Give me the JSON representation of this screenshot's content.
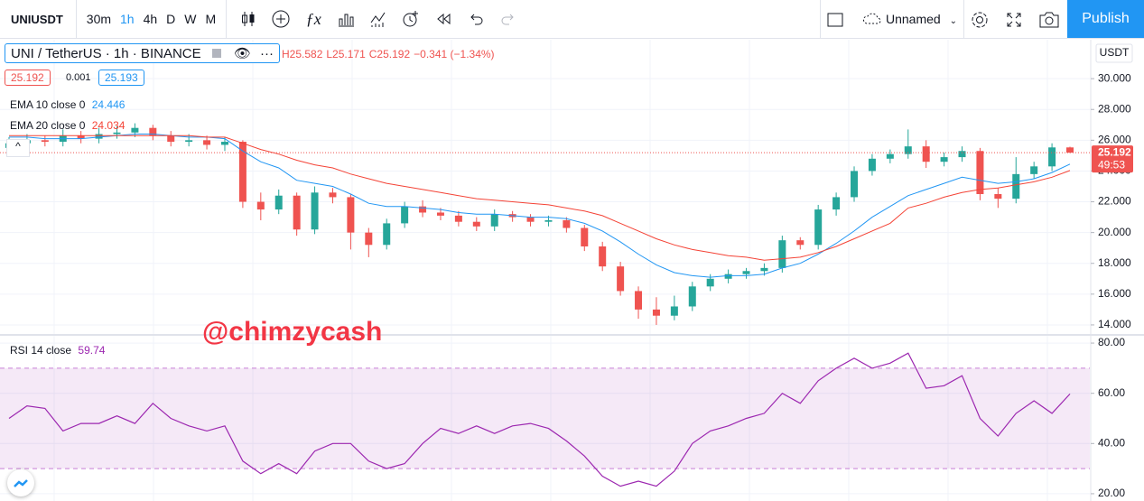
{
  "toolbar": {
    "symbol": "UNIUSDT",
    "intervals": [
      "30m",
      "1h",
      "4h",
      "D",
      "W",
      "M"
    ],
    "active_interval": 1,
    "layout_name": "Unnamed",
    "publish": "Publish"
  },
  "legend": {
    "symbol_title": "UNI / TetherUS · 1h · BINANCE",
    "ohlc": [
      "H25.582",
      "L25.171",
      "C25.192",
      "−0.341 (−1.34%)"
    ],
    "bid": "25.192",
    "spread": "0.001",
    "ask": "25.193"
  },
  "watermark": "@chimzycash",
  "chart_data": [
    {
      "type": "candlestick",
      "axis_unit": "USDT",
      "countdown": "49:53",
      "up_color": "#26a69a",
      "down_color": "#ef5350",
      "open": [
        25.5,
        25.8,
        26.0,
        25.9,
        26.3,
        26.1,
        26.4,
        26.5,
        26.8,
        26.3,
        25.9,
        26.0,
        25.7,
        25.9,
        22.0,
        21.5,
        22.4,
        20.2,
        22.6,
        22.3,
        20.0,
        19.2,
        20.6,
        21.7,
        21.3,
        21.1,
        20.7,
        20.4,
        21.2,
        21.0,
        20.7,
        20.8,
        20.3,
        19.1,
        17.8,
        16.2,
        15.0,
        14.6,
        15.2,
        16.5,
        17.0,
        17.3,
        17.5,
        17.7,
        19.5,
        19.2,
        21.5,
        22.3,
        24.0,
        24.8,
        25.1,
        25.6,
        24.6,
        24.9,
        25.3,
        22.5,
        22.2,
        23.8,
        24.3,
        25.533
      ],
      "high": [
        26.2,
        26.4,
        26.3,
        26.7,
        26.6,
        26.8,
        26.9,
        27.1,
        27.0,
        26.6,
        26.4,
        26.3,
        26.2,
        26.0,
        22.6,
        22.8,
        22.6,
        23.0,
        22.9,
        22.5,
        20.3,
        20.9,
        22.0,
        22.1,
        21.6,
        21.4,
        21.0,
        21.5,
        21.4,
        21.2,
        21.1,
        21.0,
        20.5,
        19.4,
        18.1,
        16.5,
        15.8,
        15.9,
        16.8,
        17.3,
        17.6,
        17.7,
        18.0,
        19.8,
        19.7,
        21.8,
        22.6,
        24.3,
        25.1,
        25.4,
        26.7,
        26.0,
        25.2,
        25.6,
        25.5,
        22.9,
        24.9,
        24.6,
        25.8,
        25.582
      ],
      "low": [
        25.1,
        25.5,
        25.6,
        25.6,
        25.8,
        25.8,
        26.1,
        26.2,
        26.0,
        25.6,
        25.6,
        25.4,
        25.3,
        21.6,
        20.8,
        21.2,
        19.8,
        19.9,
        21.9,
        18.9,
        18.4,
        18.9,
        20.3,
        21.0,
        20.8,
        20.4,
        20.1,
        20.1,
        20.7,
        20.4,
        20.4,
        20.0,
        18.8,
        17.5,
        15.9,
        14.4,
        14.0,
        14.3,
        14.9,
        16.2,
        16.7,
        17.0,
        17.2,
        17.4,
        18.9,
        18.9,
        21.1,
        22.0,
        23.7,
        24.5,
        24.8,
        24.2,
        24.3,
        24.6,
        22.1,
        21.6,
        21.9,
        23.5,
        24.0,
        25.171
      ],
      "close": [
        25.8,
        26.0,
        25.9,
        26.3,
        26.1,
        26.4,
        26.5,
        26.8,
        26.3,
        25.9,
        26.0,
        25.7,
        25.9,
        22.0,
        21.5,
        22.4,
        20.2,
        22.6,
        22.3,
        20.0,
        19.2,
        20.6,
        21.7,
        21.3,
        21.1,
        20.7,
        20.4,
        21.2,
        21.0,
        20.7,
        20.8,
        20.3,
        19.1,
        17.8,
        16.2,
        15.0,
        14.6,
        15.2,
        16.5,
        17.0,
        17.3,
        17.5,
        17.7,
        19.5,
        19.2,
        21.5,
        22.3,
        24.0,
        24.8,
        25.1,
        25.6,
        24.6,
        24.9,
        25.3,
        22.5,
        22.2,
        23.8,
        24.3,
        25.533,
        25.192
      ],
      "series": [
        {
          "name": "EMA 10 close 0",
          "color": "#2196f3",
          "values": [
            26.2,
            26.2,
            26.1,
            26.1,
            26.1,
            26.2,
            26.3,
            26.4,
            26.4,
            26.3,
            26.2,
            26.2,
            26.1,
            25.3,
            24.6,
            24.2,
            23.4,
            23.2,
            23.0,
            22.5,
            21.9,
            21.7,
            21.7,
            21.6,
            21.5,
            21.3,
            21.2,
            21.2,
            21.1,
            21.0,
            21.0,
            20.9,
            20.6,
            20.1,
            19.4,
            18.6,
            17.9,
            17.4,
            17.2,
            17.1,
            17.2,
            17.2,
            17.3,
            17.7,
            18.0,
            18.6,
            19.3,
            20.1,
            21.0,
            21.7,
            22.4,
            22.8,
            23.2,
            23.6,
            23.4,
            23.2,
            23.3,
            23.5,
            23.9,
            24.446
          ]
        },
        {
          "name": "EMA 20 close 0",
          "color": "#f44336",
          "values": [
            26.3,
            26.3,
            26.3,
            26.3,
            26.3,
            26.3,
            26.3,
            26.3,
            26.3,
            26.3,
            26.3,
            26.2,
            26.2,
            25.8,
            25.4,
            25.1,
            24.7,
            24.4,
            24.2,
            23.8,
            23.5,
            23.2,
            23.0,
            22.8,
            22.6,
            22.4,
            22.2,
            22.1,
            22.0,
            21.9,
            21.8,
            21.6,
            21.4,
            21.1,
            20.6,
            20.1,
            19.6,
            19.2,
            18.9,
            18.7,
            18.5,
            18.4,
            18.2,
            18.3,
            18.4,
            18.7,
            19.1,
            19.6,
            20.1,
            20.6,
            21.6,
            21.9,
            22.3,
            22.6,
            22.8,
            22.9,
            23.1,
            23.3,
            23.6,
            24.034
          ]
        }
      ],
      "ylim": [
        13.41,
        32.53
      ],
      "yticks": [
        {
          "value": 14,
          "label": "14.000"
        },
        {
          "value": 16,
          "label": "16.000"
        },
        {
          "value": 18,
          "label": "18.000"
        },
        {
          "value": 20,
          "label": "20.000"
        },
        {
          "value": 22,
          "label": "22.000"
        },
        {
          "value": 24,
          "label": "24.000"
        },
        {
          "value": 26,
          "label": "26.000"
        },
        {
          "value": 28,
          "label": "28.000"
        },
        {
          "value": 30,
          "label": "30.000"
        }
      ],
      "grid": true
    },
    {
      "type": "line",
      "title": "RSI 14 close",
      "color": "#9c27b0",
      "band": [
        30,
        70
      ],
      "values": [
        50,
        55,
        54,
        45,
        48,
        48,
        51,
        48,
        56,
        50,
        47,
        45,
        47,
        33,
        28,
        32,
        28,
        37,
        40,
        40,
        33,
        30,
        32,
        40,
        46,
        44,
        47,
        44,
        47,
        48,
        46,
        41,
        35,
        27,
        23,
        25,
        23,
        29,
        40,
        45,
        47,
        50,
        52,
        60,
        56,
        65,
        70,
        74,
        70,
        72,
        76,
        62,
        63,
        67,
        50,
        43,
        52,
        57,
        52,
        59.74
      ],
      "ylim": [
        17.1,
        82.9
      ],
      "yticks": [
        {
          "value": 20,
          "label": "20.00"
        },
        {
          "value": 40,
          "label": "40.00"
        },
        {
          "value": 60,
          "label": "60.00"
        },
        {
          "value": 80,
          "label": "80.00"
        }
      ],
      "grid": true
    }
  ]
}
